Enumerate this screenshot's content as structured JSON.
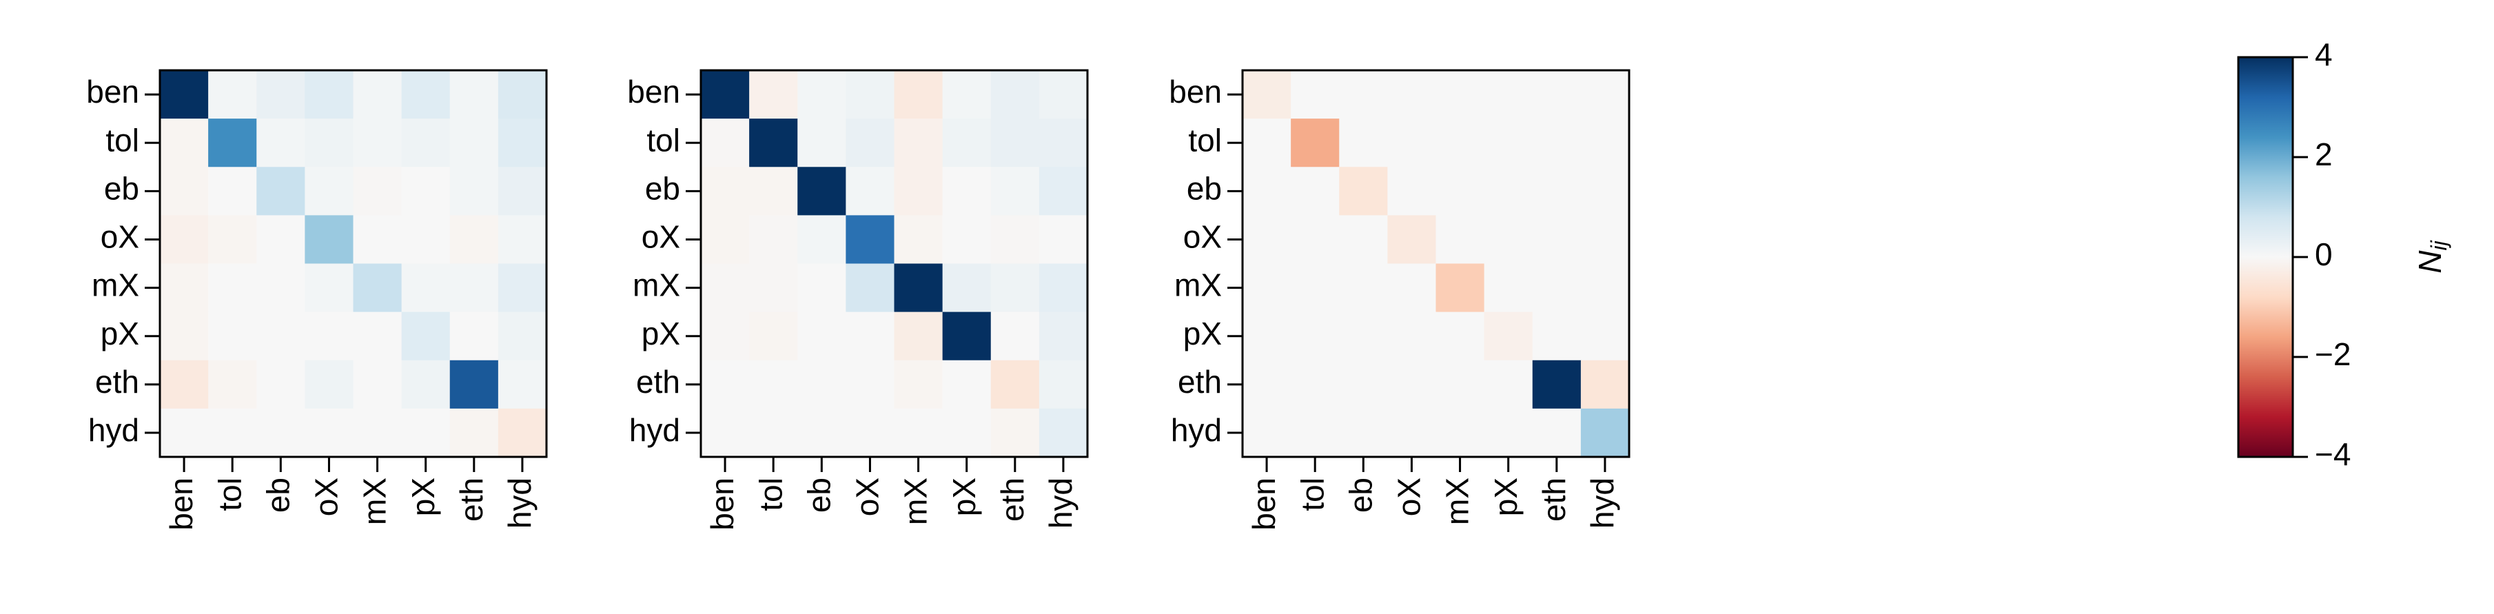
{
  "chart_data": [
    {
      "type": "heatmap",
      "colormap": "RdBu",
      "zlim": [
        -4,
        4
      ],
      "x_categories": [
        "ben",
        "tol",
        "eb",
        "oX",
        "mX",
        "pX",
        "eth",
        "hyd"
      ],
      "y_categories": [
        "ben",
        "tol",
        "eb",
        "oX",
        "mX",
        "pX",
        "eth",
        "hyd"
      ],
      "values": [
        [
          4,
          0.1,
          0.3,
          0.5,
          0.1,
          0.5,
          0.1,
          0.6
        ],
        [
          -0.1,
          2.5,
          0.1,
          0.2,
          0.1,
          0.2,
          0.1,
          0.5
        ],
        [
          -0.1,
          0,
          0.9,
          0.1,
          -0.05,
          0,
          0.1,
          0.3
        ],
        [
          -0.2,
          -0.1,
          0,
          1.5,
          0,
          0,
          -0.1,
          0.1
        ],
        [
          -0.1,
          0,
          0,
          0.1,
          0.9,
          0.1,
          0.1,
          0.4
        ],
        [
          -0.1,
          0,
          0,
          0,
          0,
          0.5,
          0,
          0.2
        ],
        [
          -0.4,
          -0.1,
          0,
          0.2,
          0,
          0.2,
          3.4,
          0.1
        ],
        [
          0,
          0,
          0,
          0,
          0,
          0,
          -0.1,
          -0.4
        ]
      ]
    },
    {
      "type": "heatmap",
      "colormap": "RdBu",
      "zlim": [
        -4,
        4
      ],
      "x_categories": [
        "ben",
        "tol",
        "eb",
        "oX",
        "mX",
        "pX",
        "eth",
        "hyd"
      ],
      "y_categories": [
        "ben",
        "tol",
        "eb",
        "oX",
        "mX",
        "pX",
        "eth",
        "hyd"
      ],
      "values": [
        [
          4,
          -0.2,
          0.1,
          0.2,
          -0.4,
          0.1,
          0.3,
          0.2
        ],
        [
          -0.05,
          4,
          0.1,
          0.3,
          -0.2,
          0.2,
          0.3,
          0.3
        ],
        [
          -0.1,
          -0.1,
          4,
          0.1,
          -0.2,
          0,
          0.1,
          0.4
        ],
        [
          -0.1,
          -0.05,
          0.1,
          3,
          -0.1,
          0,
          -0.05,
          0
        ],
        [
          -0.05,
          -0.05,
          0,
          0.7,
          4,
          0.3,
          0.2,
          0.4
        ],
        [
          -0.05,
          -0.1,
          0,
          0,
          -0.3,
          4,
          0,
          0.3
        ],
        [
          0,
          0,
          0,
          0,
          -0.1,
          0,
          -0.5,
          0.2
        ],
        [
          0,
          0,
          0,
          0,
          0,
          0,
          -0.1,
          0.4
        ]
      ]
    },
    {
      "type": "heatmap",
      "colormap": "RdBu",
      "zlim": [
        -4,
        4
      ],
      "x_categories": [
        "ben",
        "tol",
        "eb",
        "oX",
        "mX",
        "pX",
        "eth",
        "hyd"
      ],
      "y_categories": [
        "ben",
        "tol",
        "eb",
        "oX",
        "mX",
        "pX",
        "eth",
        "hyd"
      ],
      "values": [
        [
          -0.3,
          0,
          0,
          0,
          0,
          0,
          0,
          0
        ],
        [
          0,
          -1.5,
          0,
          0,
          0,
          0,
          0,
          0
        ],
        [
          0,
          0,
          -0.5,
          0,
          0,
          0,
          0,
          0
        ],
        [
          0,
          0,
          0,
          -0.4,
          0,
          0,
          0,
          0
        ],
        [
          0,
          0,
          0,
          0,
          -1,
          0,
          0,
          0
        ],
        [
          0,
          0,
          0,
          0,
          0,
          -0.2,
          0,
          0
        ],
        [
          0,
          0,
          0,
          0,
          0,
          0,
          4,
          -0.5
        ],
        [
          0,
          0,
          0,
          0,
          0,
          0,
          0,
          1.4
        ]
      ]
    },
    {
      "type": "colorbar",
      "colormap": "RdBu",
      "lim": [
        -4,
        4
      ],
      "ticks": [
        {
          "value": -4,
          "label": "−4"
        },
        {
          "value": -2,
          "label": "−2"
        },
        0,
        2,
        4
      ],
      "label": {
        "base": "N",
        "subscript": "ij"
      }
    }
  ]
}
